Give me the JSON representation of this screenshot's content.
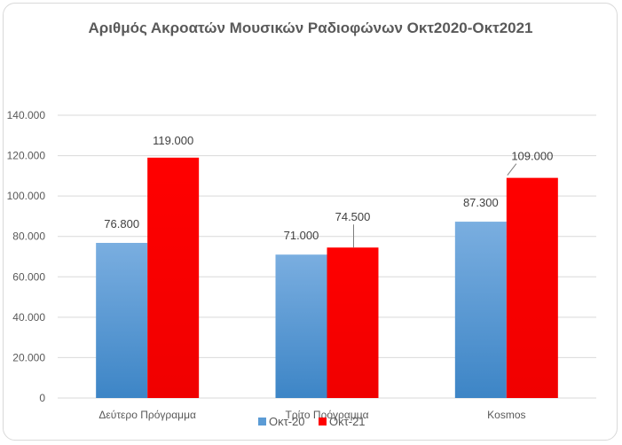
{
  "chart_data": {
    "type": "bar",
    "title": "Αριθμός Ακροατών Μουσικών Ραδιοφώνων Οκτ2020-Οκτ2021",
    "categories": [
      "Δεύτερο Πρόγραμμα",
      "Τρίτο Πρόγραμμα",
      "Kosmos"
    ],
    "series": [
      {
        "name": "Οκτ-20",
        "values": [
          76800,
          71000,
          87300
        ],
        "labels": [
          "76.800",
          "71.000",
          "87.300"
        ],
        "color": "#5b9bd5"
      },
      {
        "name": "Οκτ-21",
        "values": [
          119000,
          74500,
          109000
        ],
        "labels": [
          "119.000",
          "74.500",
          "109.000"
        ],
        "color": "#ff0000"
      }
    ],
    "yticks": [
      0,
      20000,
      40000,
      60000,
      80000,
      100000,
      120000,
      140000
    ],
    "ytick_labels": [
      "0",
      "20.000",
      "40.000",
      "60.000",
      "80.000",
      "100.000",
      "120.000",
      "140.000"
    ],
    "ylim": [
      0,
      140000
    ],
    "grid": true,
    "legend_position": "bottom",
    "xlabel": "",
    "ylabel": ""
  }
}
